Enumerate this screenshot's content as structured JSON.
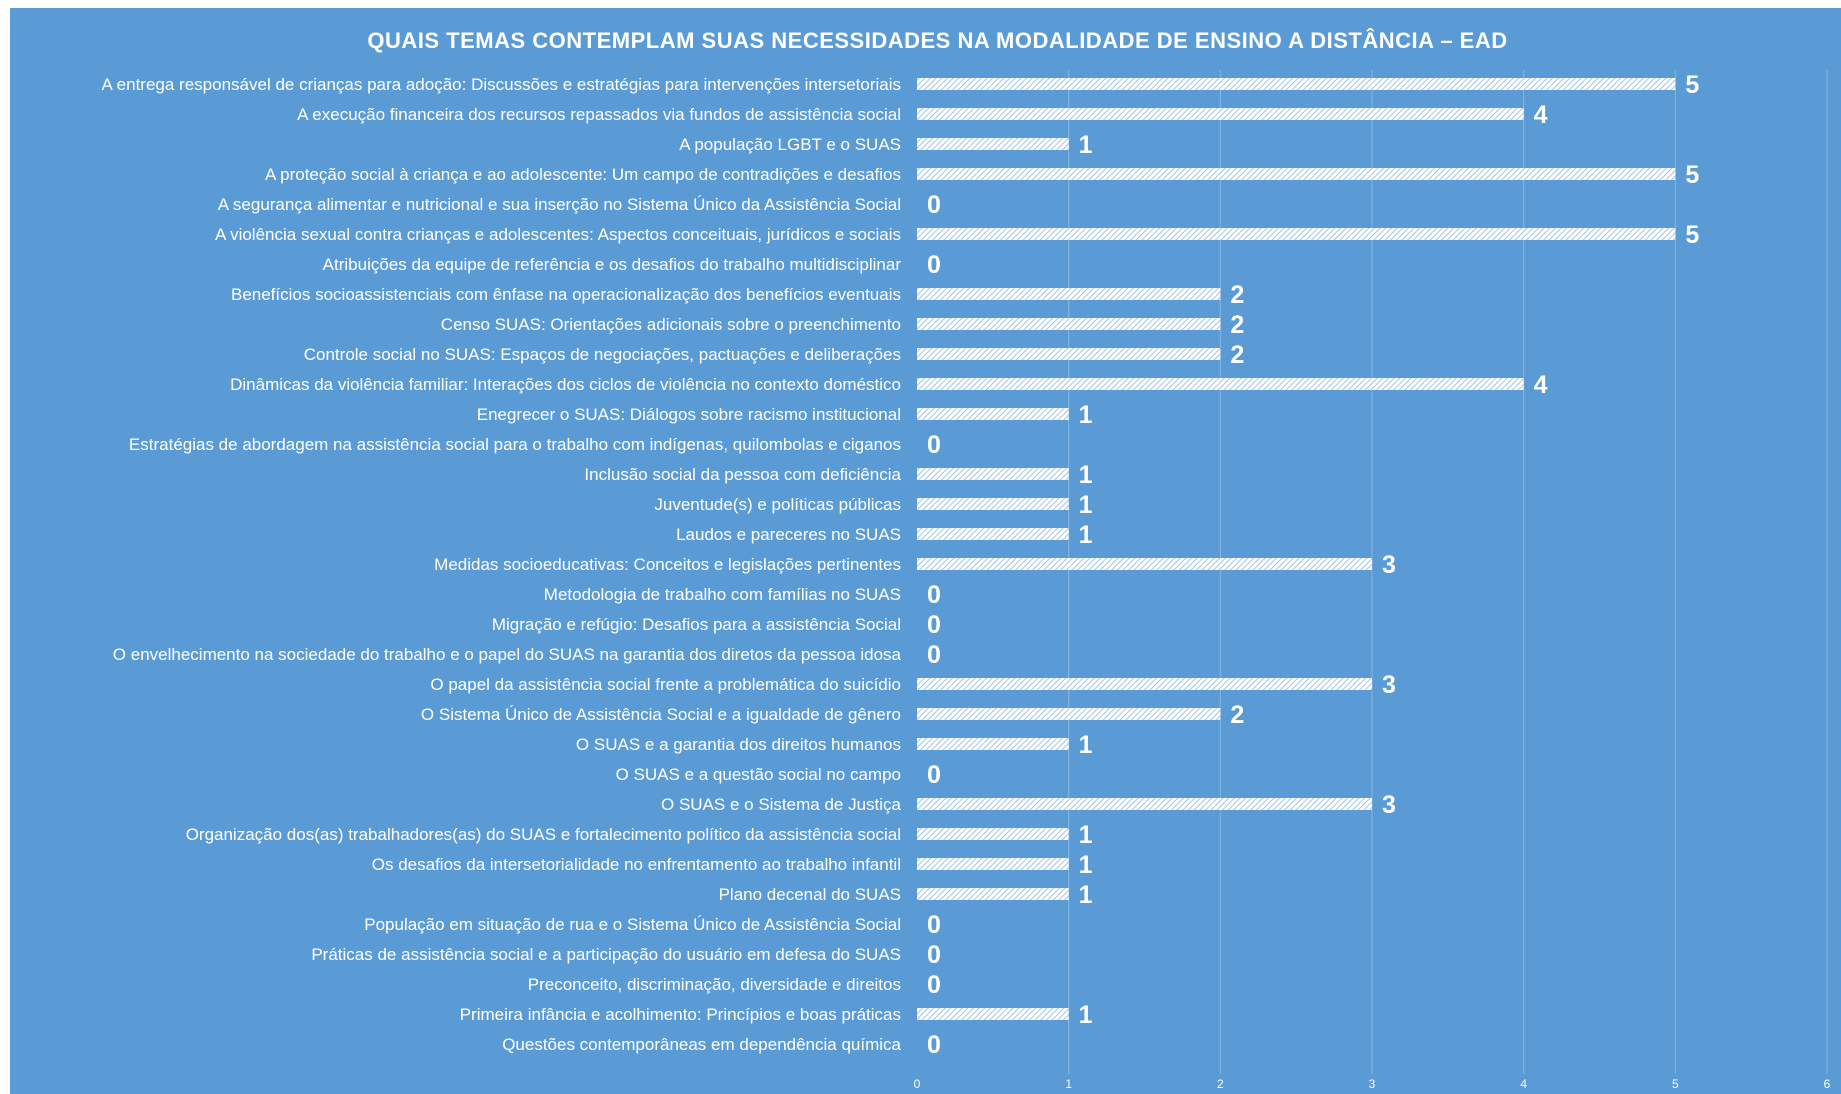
{
  "chart_data": {
    "type": "bar",
    "orientation": "horizontal",
    "title": "QUAIS TEMAS CONTEMPLAM SUAS NECESSIDADES NA MODALIDADE DE ENSINO A DISTÂNCIA – EAD",
    "xlim": [
      0,
      6
    ],
    "x_ticks": [
      "0",
      "1",
      "2",
      "3",
      "4",
      "5",
      "6"
    ],
    "grid": "vertical",
    "legend": "none",
    "bar_pattern": "diagonal-hatch",
    "colors": {
      "background": "#5B9BD5",
      "bar": "#ffffff",
      "text": "#ffffff",
      "grid": "#86B6E2"
    },
    "categories": [
      "A entrega responsável de crianças para adoção: Discussões e estratégias para intervenções intersetoriais",
      "A execução financeira dos recursos repassados via fundos de assistência social",
      "A população LGBT e o SUAS",
      "A proteção social à criança e ao adolescente: Um campo de contradições e desafios",
      "A segurança alimentar e nutricional e sua inserção no Sistema Único da Assistência Social",
      "A violência sexual contra crianças e adolescentes: Aspectos conceituais, jurídicos e sociais",
      "Atribuições da equipe de referência e os desafios do trabalho multidisciplinar",
      "Benefícios socioassistenciais com ênfase na operacionalização dos benefícios eventuais",
      "Censo SUAS: Orientações adicionais sobre o preenchimento",
      "Controle social no SUAS: Espaços de negociações, pactuações e deliberações",
      "Dinâmicas da violência familiar: Interações dos ciclos de violência no contexto doméstico",
      "Enegrecer o SUAS: Diálogos sobre racismo institucional",
      "Estratégias de abordagem na assistência social para o trabalho com indígenas, quilombolas e ciganos",
      "Inclusão social da pessoa com deficiência",
      "Juventude(s) e políticas públicas",
      "Laudos e pareceres no SUAS",
      "Medidas socioeducativas: Conceitos e legislações pertinentes",
      "Metodologia de trabalho com famílias no SUAS",
      "Migração e refúgio: Desafios para a assistência Social",
      "O envelhecimento na sociedade do trabalho e o papel do SUAS na garantia dos diretos da pessoa idosa",
      "O papel da assistência social frente a problemática do suicídio",
      "O Sistema Único de Assistência Social e a igualdade de gênero",
      "O SUAS e a garantia dos direitos humanos",
      "O SUAS e a questão social no campo",
      "O SUAS e o Sistema de Justiça",
      "Organização dos(as) trabalhadores(as) do SUAS e fortalecimento político da assistência social",
      "Os desafios da intersetorialidade no enfrentamento ao trabalho infantil",
      "Plano decenal do SUAS",
      "População em situação de rua e o Sistema Único de Assistência Social",
      "Práticas de assistência social e a participação do usuário em defesa do SUAS",
      "Preconceito, discriminação, diversidade e direitos",
      "Primeira infância e acolhimento: Princípios e boas práticas",
      "Questões contemporâneas em dependência química"
    ],
    "values": [
      5,
      4,
      1,
      5,
      0,
      5,
      0,
      2,
      2,
      2,
      4,
      1,
      0,
      1,
      1,
      1,
      3,
      0,
      0,
      0,
      3,
      2,
      1,
      0,
      3,
      1,
      1,
      1,
      0,
      0,
      0,
      1,
      0
    ]
  }
}
